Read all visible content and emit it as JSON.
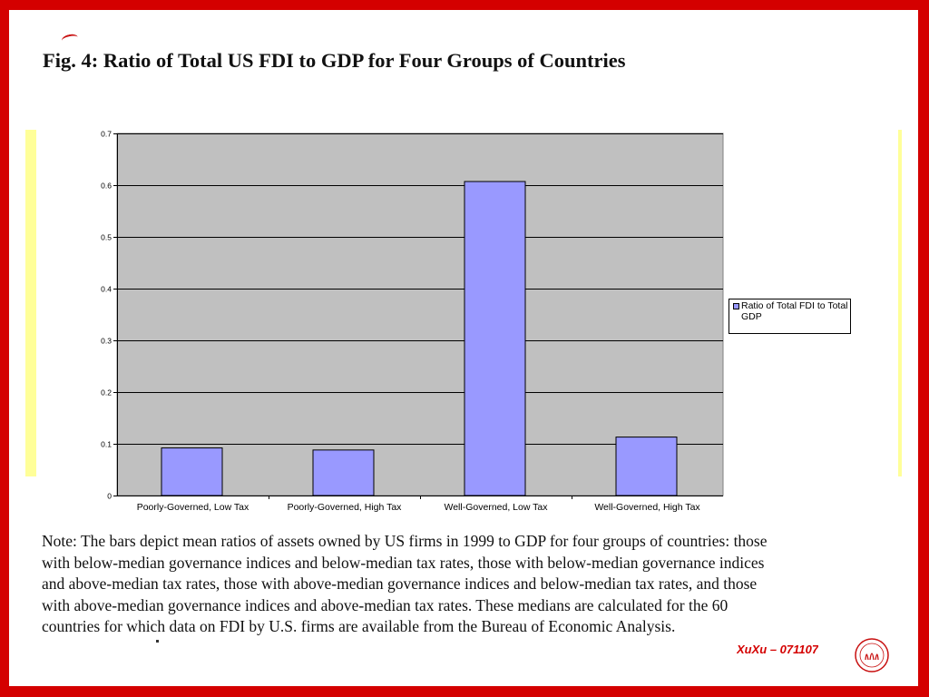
{
  "figure_title": "Fig. 4: Ratio of Total US FDI to GDP for Four Groups of Countries",
  "legend": {
    "label": "Ratio of Total FDI to Total GDP"
  },
  "chart_data": {
    "type": "bar",
    "title": "Fig. 4: Ratio of Total US FDI to GDP for Four Groups of Countries",
    "categories": [
      "Poorly-Governed, Low Tax",
      "Poorly-Governed, High Tax",
      "Well-Governed, Low Tax",
      "Well-Governed, High Tax"
    ],
    "series": [
      {
        "name": "Ratio of Total FDI to Total GDP",
        "values": [
          0.092,
          0.088,
          0.607,
          0.113
        ],
        "color": "#9999ff"
      }
    ],
    "ylim": [
      0,
      0.7
    ],
    "yticks": [
      0,
      0.1,
      0.2,
      0.3,
      0.4,
      0.5,
      0.6,
      0.7
    ],
    "ytick_labels": [
      "0",
      "0.1",
      "0.2",
      "0.3",
      "0.4",
      "0.5",
      "0.6",
      "0.7"
    ],
    "grid": true,
    "plot_background": "#c0c0c0",
    "legend_position": "right"
  },
  "note": [
    "Note: The bars depict mean ratios of assets owned by US firms in 1999 to GDP for four groups of countries: those",
    "with below-median governance indices and below-median tax rates, those with below-median governance indices",
    "and above-median tax rates, those with above-median governance indices and below-median tax rates, and those",
    "with above-median governance indices and above-median tax rates. These medians are calculated for the 60",
    "countries for which data on FDI by U.S. firms are available from the Bureau of Economic Analysis."
  ],
  "footer": {
    "text": "XuXu – 071107"
  },
  "colors": {
    "frame": "#d40000",
    "accent": "#ffff99",
    "bar": "#9999ff",
    "plot_bg": "#c0c0c0"
  }
}
